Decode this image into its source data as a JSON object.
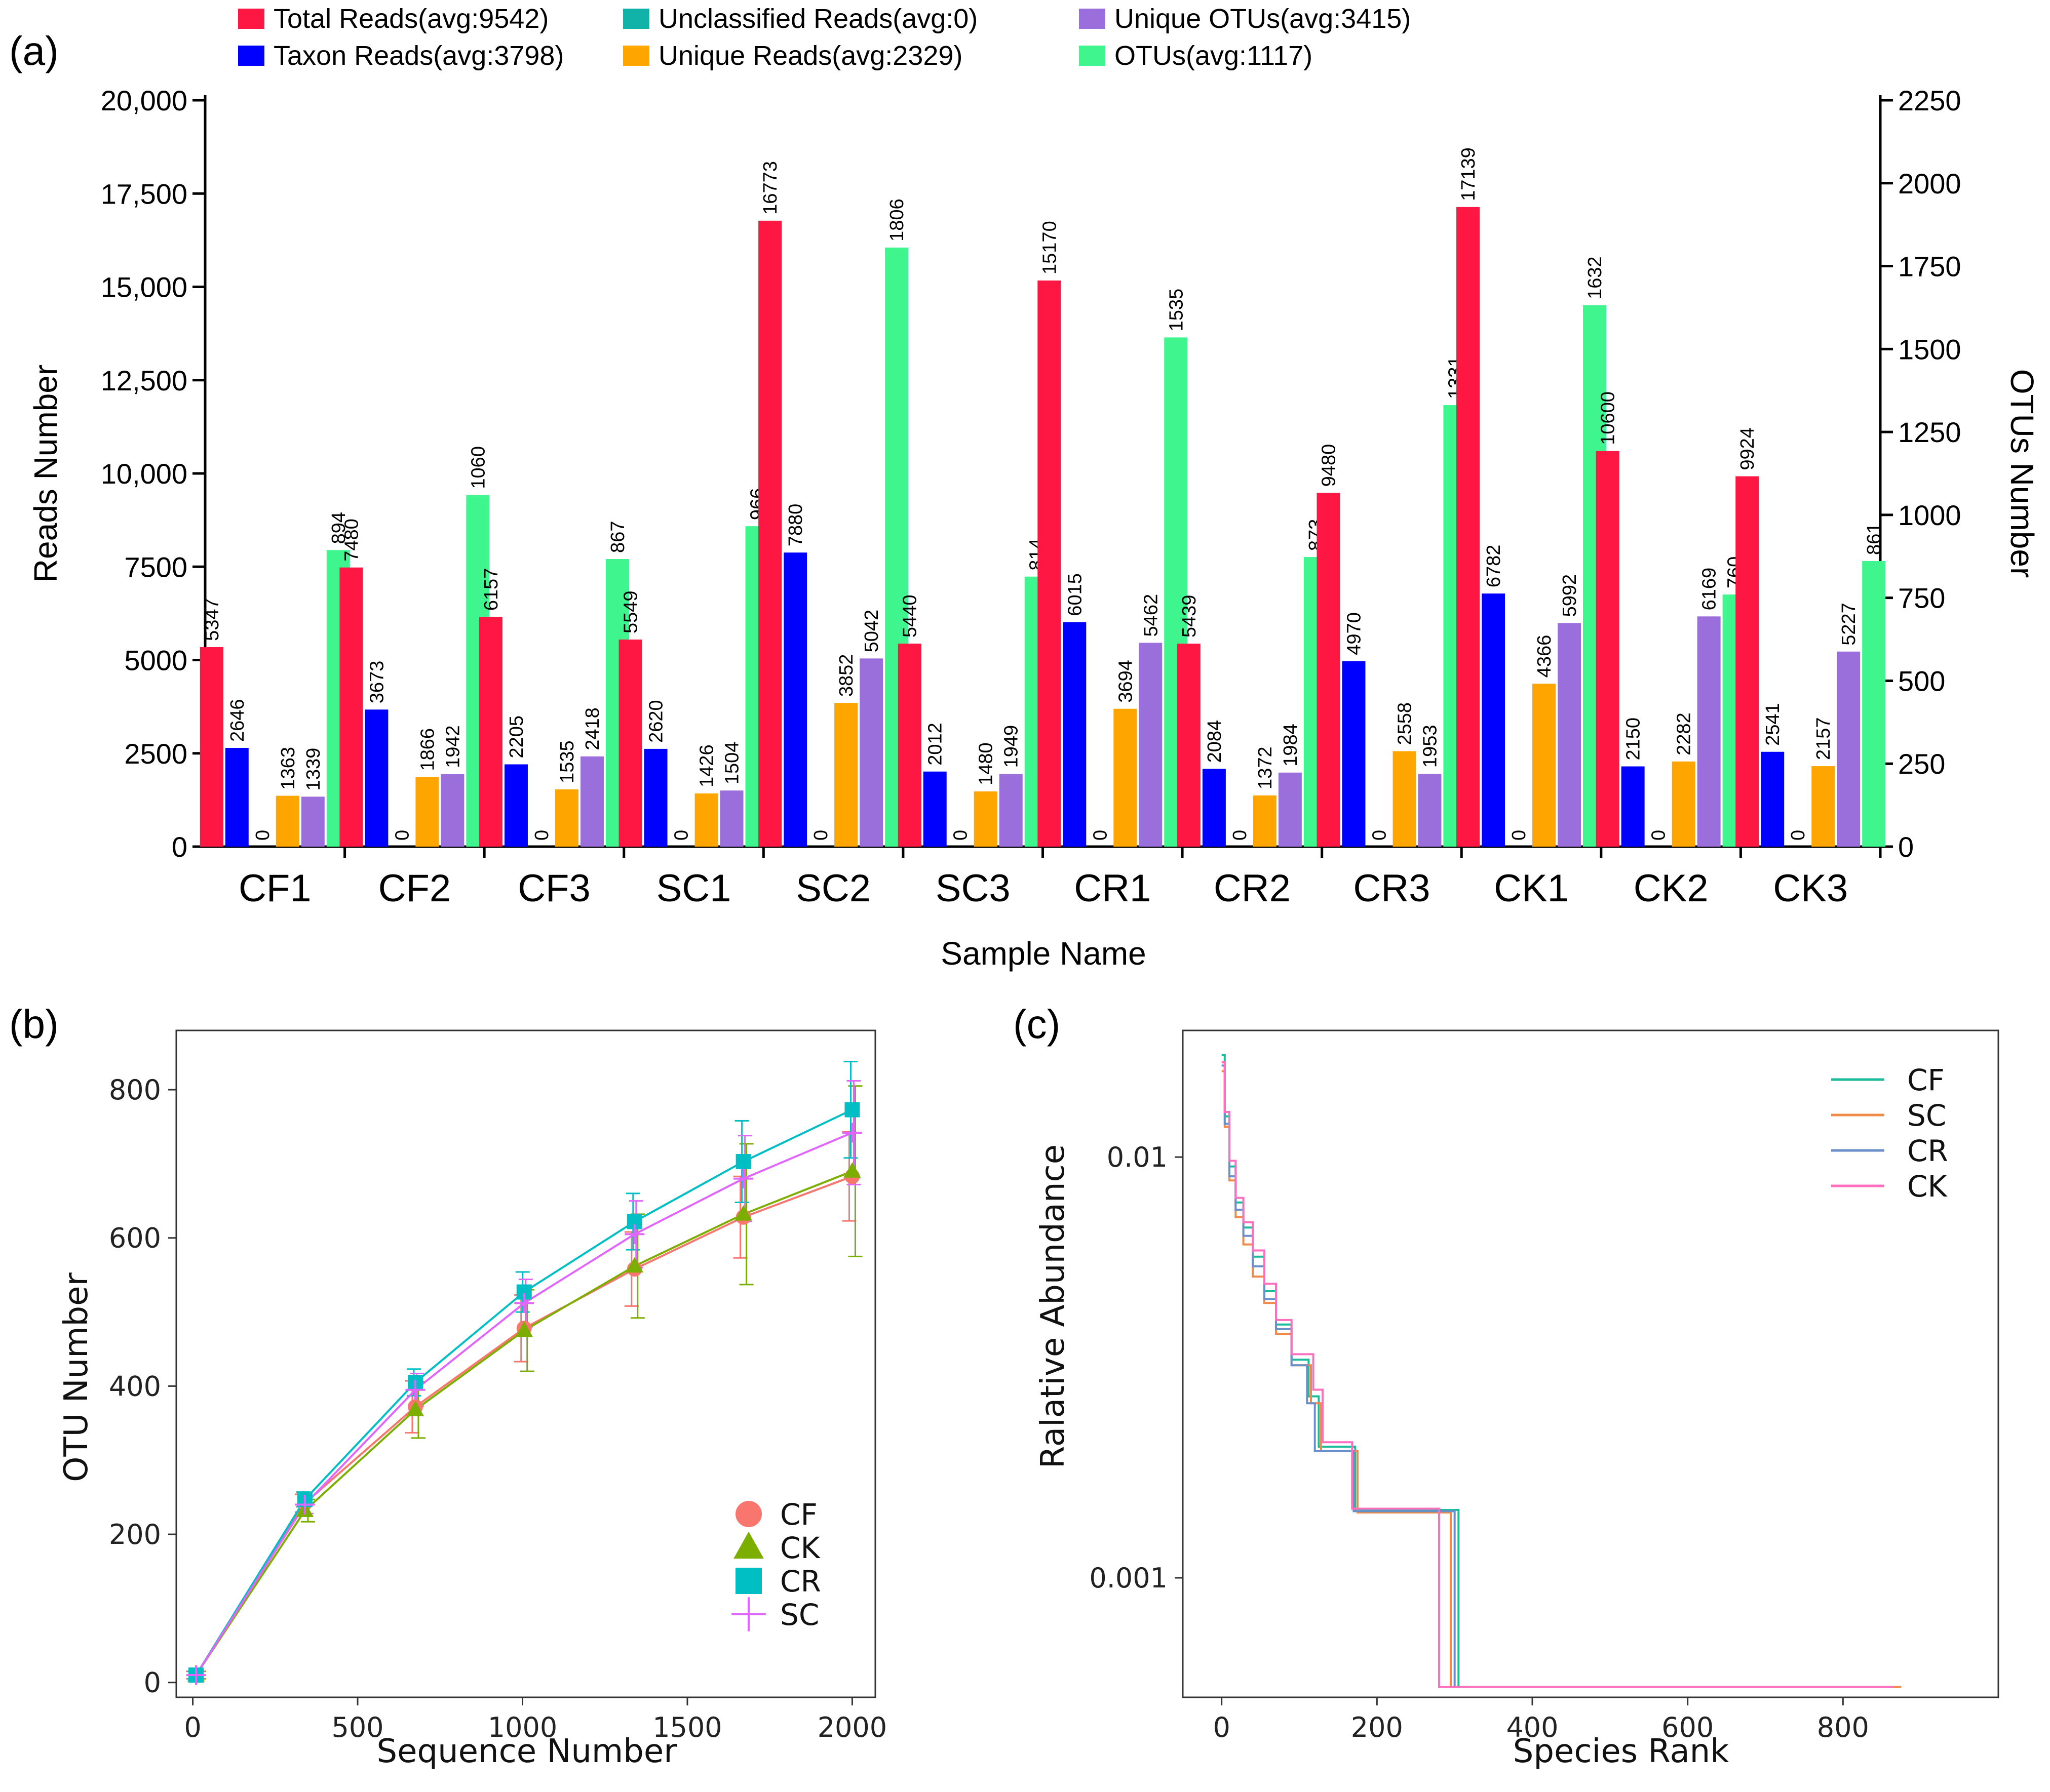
{
  "panels": {
    "a": "(a)",
    "b": "(b)",
    "c": "(c)"
  },
  "chart_data": [
    {
      "id": "a",
      "type": "bar",
      "xlabel": "Sample Name",
      "ylabel": "Reads Number",
      "y2label": "OTUs Number",
      "ylim": [
        0,
        20000
      ],
      "y2lim": [
        0,
        2250
      ],
      "yticks": [
        "0",
        "2500",
        "5000",
        "7500",
        "10,000",
        "12,500",
        "15,000",
        "17,500",
        "20,000"
      ],
      "y2ticks": [
        "0",
        "250",
        "500",
        "750",
        "1000",
        "1250",
        "1500",
        "1750",
        "2000",
        "2250"
      ],
      "categories": [
        "CF1",
        "CF2",
        "CF3",
        "SC1",
        "SC2",
        "SC3",
        "CR1",
        "CR2",
        "CR3",
        "CK1",
        "CK2",
        "CK3"
      ],
      "series": [
        {
          "name": "Total Reads(avg:9542)",
          "color": "#ff1744",
          "axis": "left",
          "values": [
            5347,
            7480,
            6157,
            5549,
            16773,
            5440,
            15170,
            5439,
            9480,
            17139,
            10600,
            9924
          ]
        },
        {
          "name": "Taxon Reads(avg:3798)",
          "color": "#0000ff",
          "axis": "left",
          "values": [
            2646,
            3673,
            2205,
            2620,
            7880,
            2012,
            6015,
            2084,
            4970,
            6782,
            2150,
            2541
          ]
        },
        {
          "name": "Unclassified Reads(avg:0)",
          "color": "#11b3a8",
          "axis": "left",
          "values": [
            0,
            0,
            0,
            0,
            0,
            0,
            0,
            0,
            0,
            0,
            0,
            0
          ]
        },
        {
          "name": "Unique Reads(avg:2329)",
          "color": "#ffa500",
          "axis": "left",
          "values": [
            1363,
            1866,
            1535,
            1426,
            3852,
            1480,
            3694,
            1372,
            2558,
            4366,
            2282,
            2157
          ]
        },
        {
          "name": "Unique OTUs(avg:3415)",
          "color": "#9b6fdb",
          "axis": "left",
          "values": [
            1339,
            1942,
            2418,
            1504,
            5042,
            1949,
            5462,
            1984,
            1953,
            5992,
            6169,
            5227
          ]
        },
        {
          "name": "OTUs(avg:1117)",
          "color": "#3ff58e",
          "axis": "right",
          "values": [
            894,
            1060,
            867,
            966,
            1806,
            814,
            1535,
            873,
            1331,
            1632,
            760,
            861
          ]
        }
      ]
    },
    {
      "id": "b",
      "type": "line",
      "xlabel": "Sequence Number",
      "ylabel": "OTU Number",
      "xlim": [
        -50,
        2070
      ],
      "ylim": [
        -20,
        880
      ],
      "xticks": [
        "0",
        "500",
        "1000",
        "1500",
        "2000"
      ],
      "yticks": [
        "0",
        "200",
        "400",
        "600",
        "800"
      ],
      "x": [
        10,
        340,
        675,
        1005,
        1340,
        1670,
        2000
      ],
      "series": [
        {
          "name": "CF",
          "color": "#f8766d",
          "marker": "circle",
          "values": [
            10,
            242,
            372,
            478,
            558,
            628,
            683
          ],
          "err": [
            5,
            12,
            35,
            45,
            50,
            55,
            60
          ]
        },
        {
          "name": "CK",
          "color": "#7cae00",
          "marker": "triangle",
          "values": [
            10,
            232,
            368,
            475,
            562,
            632,
            690
          ],
          "err": [
            5,
            15,
            38,
            55,
            70,
            95,
            115
          ]
        },
        {
          "name": "CR",
          "color": "#00bfc4",
          "marker": "square",
          "values": [
            10,
            247,
            405,
            527,
            622,
            703,
            773
          ],
          "err": [
            5,
            10,
            18,
            27,
            38,
            55,
            65
          ]
        },
        {
          "name": "SC",
          "color": "#e066ff",
          "marker": "plus",
          "values": [
            10,
            240,
            395,
            512,
            605,
            680,
            742
          ],
          "err": [
            5,
            12,
            22,
            32,
            45,
            58,
            70
          ]
        }
      ]
    },
    {
      "id": "c",
      "type": "line",
      "xlabel": "Species Rank",
      "ylabel": "Ralative Abundance",
      "xlim": [
        -50,
        1000
      ],
      "ylim": [
        0.00052,
        0.02
      ],
      "yscale": "log",
      "xticks": [
        "0",
        "200",
        "400",
        "600",
        "800"
      ],
      "yticks": [
        "0.001",
        "0.01"
      ],
      "series": [
        {
          "name": "CF",
          "color": "#1abc9c",
          "points": [
            [
              0,
              0.0175
            ],
            [
              4,
              0.0125
            ],
            [
              10,
              0.0095
            ],
            [
              18,
              0.0078
            ],
            [
              28,
              0.0068
            ],
            [
              40,
              0.0058
            ],
            [
              55,
              0.0048
            ],
            [
              70,
              0.004
            ],
            [
              90,
              0.0033
            ],
            [
              112,
              0.0027
            ],
            [
              125,
              0.00205
            ],
            [
              172,
              0.00205
            ],
            [
              172,
              0.00145
            ],
            [
              305,
              0.00145
            ],
            [
              305,
              0.00055
            ],
            [
              870,
              0.00055
            ]
          ]
        },
        {
          "name": "SC",
          "color": "#f08a4b",
          "points": [
            [
              0,
              0.016
            ],
            [
              4,
              0.0118
            ],
            [
              10,
              0.0088
            ],
            [
              18,
              0.0072
            ],
            [
              28,
              0.0062
            ],
            [
              40,
              0.0052
            ],
            [
              55,
              0.0045
            ],
            [
              70,
              0.0038
            ],
            [
              90,
              0.0032
            ],
            [
              115,
              0.0026
            ],
            [
              128,
              0.002
            ],
            [
              175,
              0.002
            ],
            [
              175,
              0.00143
            ],
            [
              295,
              0.00143
            ],
            [
              295,
              0.00055
            ],
            [
              875,
              0.00055
            ]
          ]
        },
        {
          "name": "CR",
          "color": "#6a8fc9",
          "points": [
            [
              0,
              0.0165
            ],
            [
              4,
              0.012
            ],
            [
              10,
              0.009
            ],
            [
              18,
              0.0075
            ],
            [
              28,
              0.0065
            ],
            [
              40,
              0.0055
            ],
            [
              55,
              0.0046
            ],
            [
              70,
              0.0039
            ],
            [
              90,
              0.0032
            ],
            [
              110,
              0.0026
            ],
            [
              120,
              0.002
            ],
            [
              170,
              0.002
            ],
            [
              170,
              0.00144
            ],
            [
              300,
              0.00144
            ],
            [
              300,
              0.00055
            ],
            [
              860,
              0.00055
            ]
          ]
        },
        {
          "name": "CK",
          "color": "#ff6fbf",
          "points": [
            [
              0,
              0.0168
            ],
            [
              4,
              0.0128
            ],
            [
              10,
              0.0098
            ],
            [
              18,
              0.008
            ],
            [
              28,
              0.007
            ],
            [
              40,
              0.006
            ],
            [
              55,
              0.005
            ],
            [
              70,
              0.0041
            ],
            [
              90,
              0.0034
            ],
            [
              118,
              0.0028
            ],
            [
              130,
              0.0021
            ],
            [
              168,
              0.0021
            ],
            [
              168,
              0.00146
            ],
            [
              280,
              0.00146
            ],
            [
              280,
              0.00055
            ],
            [
              865,
              0.00055
            ]
          ]
        }
      ]
    }
  ]
}
